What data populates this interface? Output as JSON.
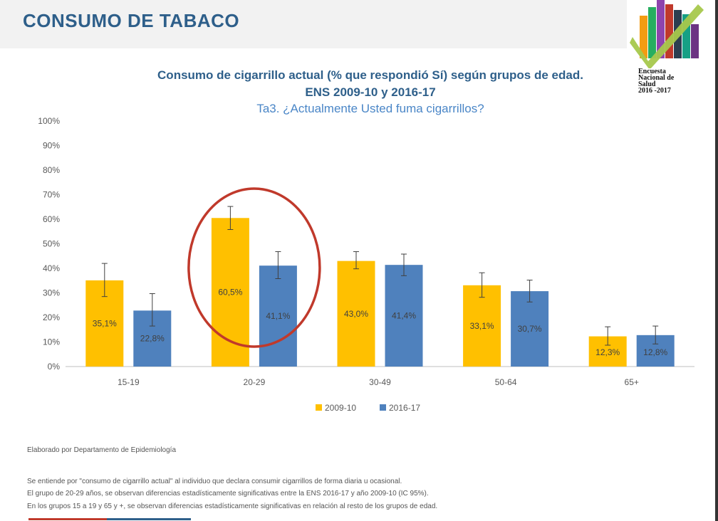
{
  "header": {
    "title": "CONSUMO DE TABACO",
    "logo_lines": [
      "Encuesta",
      "Nacional de",
      "Salud",
      "2016 -2017"
    ]
  },
  "chart_titles": {
    "line1": "Consumo de cigarrillo actual (% que respondió Sí) según grupos de edad.",
    "line2": "ENS 2009-10 y 2016-17",
    "line3": "Ta3. ¿Actualmente Usted fuma cigarrillos?"
  },
  "chart_data": {
    "type": "bar",
    "categories": [
      "15-19",
      "20-29",
      "30-49",
      "50-64",
      "65+"
    ],
    "series": [
      {
        "name": "2009-10",
        "color": "#ffc000",
        "values": [
          35.1,
          60.5,
          43.0,
          33.1,
          12.3
        ],
        "labels": [
          "35,1%",
          "60,5%",
          "43,0%",
          "33,1%",
          "12,3%"
        ],
        "ci_low": [
          28.5,
          55.8,
          39.8,
          28.2,
          8.7
        ],
        "ci_high": [
          42.0,
          65.2,
          46.8,
          38.2,
          16.2
        ]
      },
      {
        "name": "2016-17",
        "color": "#4f81bd",
        "values": [
          22.8,
          41.1,
          41.4,
          30.7,
          12.8
        ],
        "labels": [
          "22,8%",
          "41,1%",
          "41,4%",
          "30,7%",
          "12,8%"
        ],
        "ci_low": [
          16.5,
          35.8,
          37.0,
          26.3,
          9.2
        ],
        "ci_high": [
          29.7,
          46.8,
          45.8,
          35.2,
          16.5
        ]
      }
    ],
    "ylim": [
      0,
      100
    ],
    "yticks": [
      "0%",
      "10%",
      "20%",
      "30%",
      "40%",
      "50%",
      "60%",
      "70%",
      "80%",
      "90%",
      "100%"
    ],
    "grid": false,
    "legend": "bottom",
    "annotation": {
      "type": "ellipse",
      "target_category": "20-29",
      "color": "#c0392b"
    }
  },
  "footer": {
    "source": "Elaborado por Departamento de Epidemiología",
    "note1": "Se entiende por \"consumo de cigarrillo actual\" al individuo que declara consumir cigarrillos de forma diaria u ocasional.",
    "note2": "El grupo de 20-29 años, se observan diferencias estadísticamente significativas entre la ENS 2016-17 y año 2009-10 (IC 95%).",
    "note3": "En los grupos 15 a 19 y 65 y +, se observan diferencias estadísticamente significativas en relación al resto de los grupos de edad."
  }
}
